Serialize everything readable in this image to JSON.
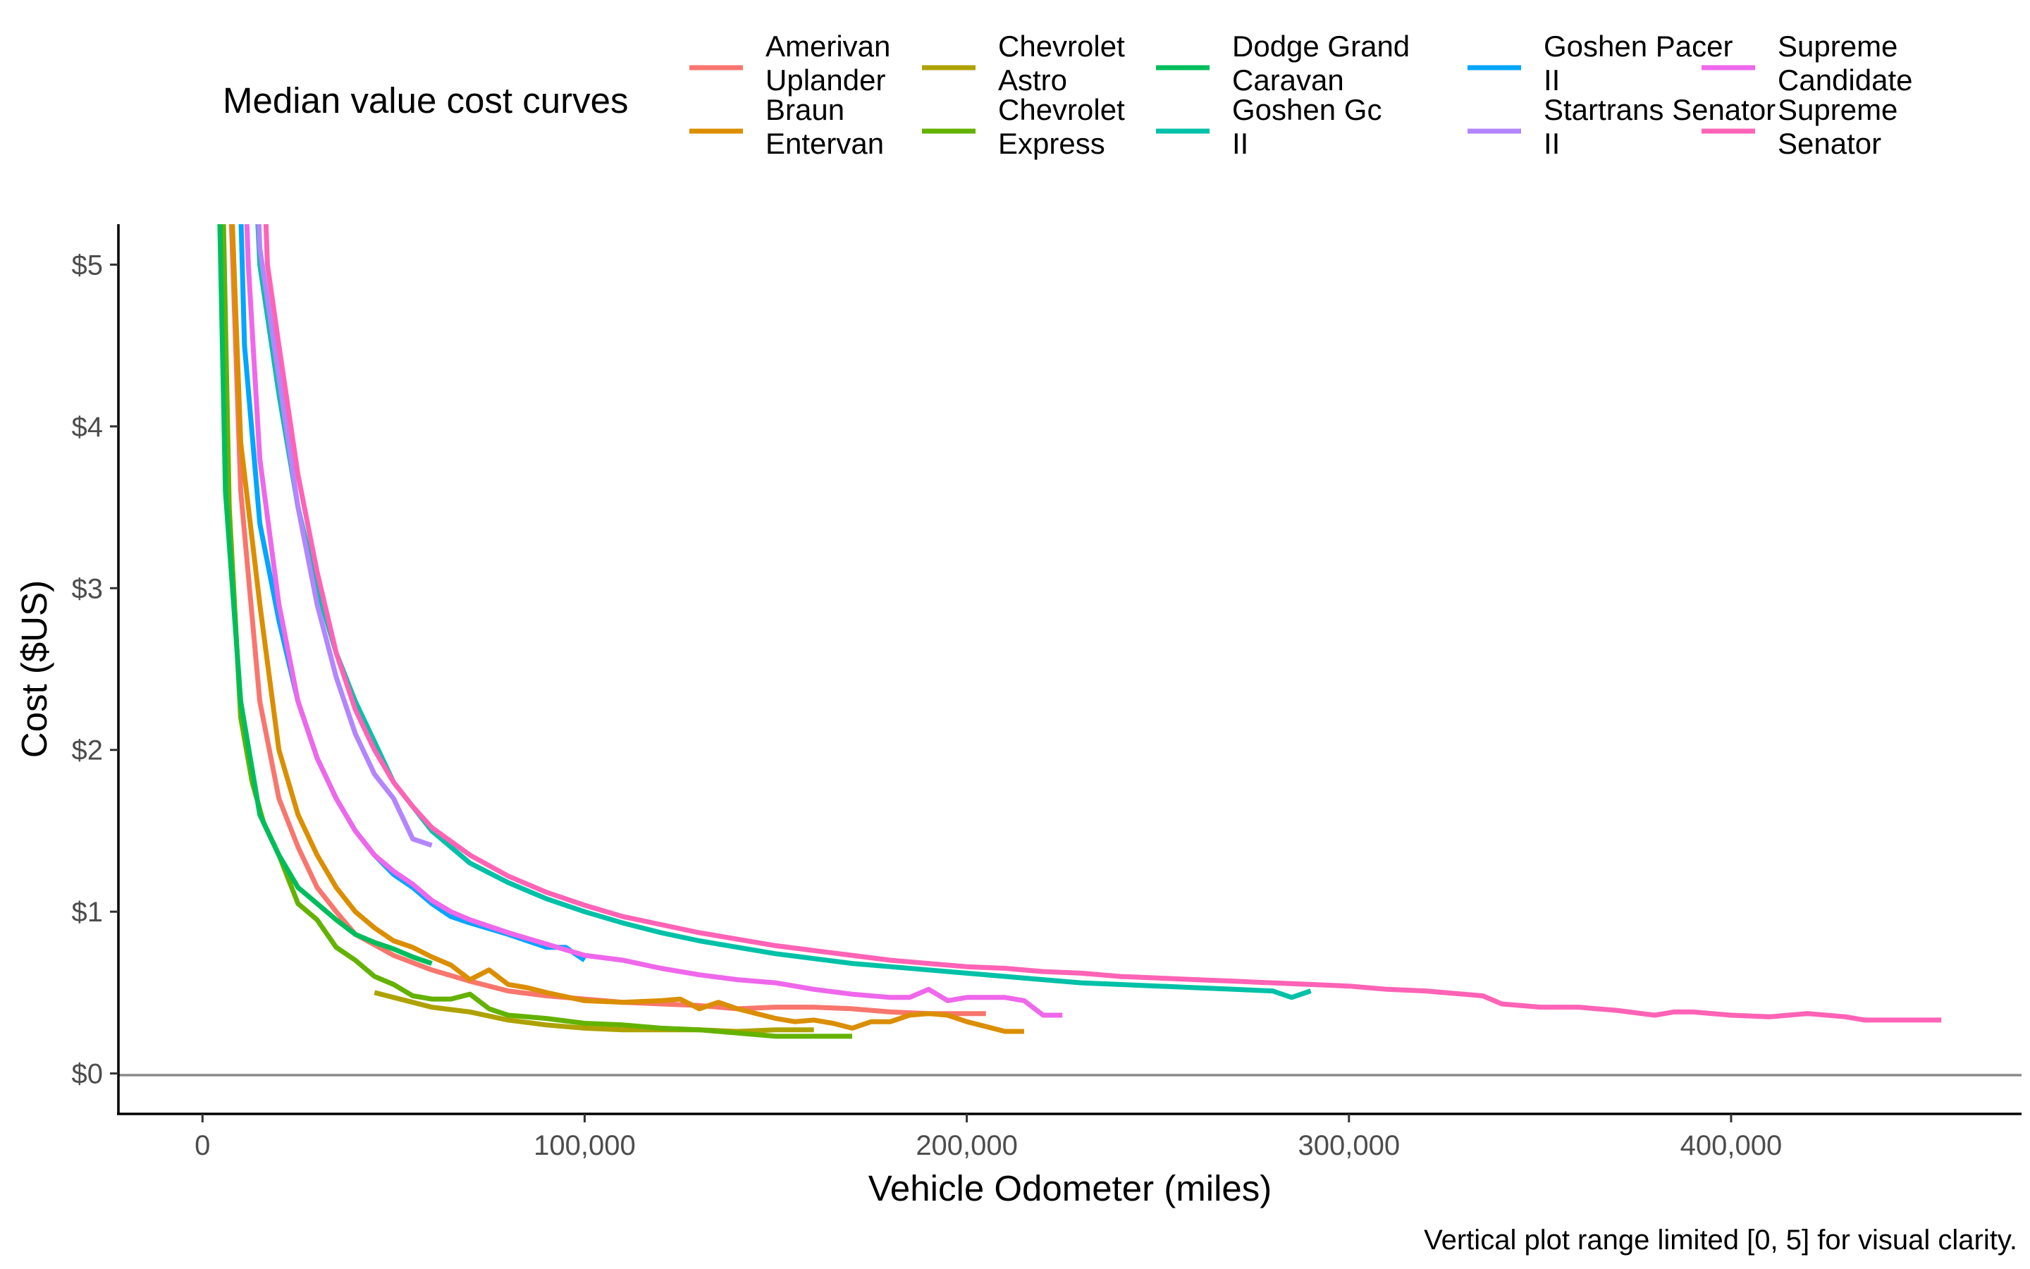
{
  "legend": {
    "title": "Median value cost curves"
  },
  "caption": "Vertical plot range limited [0, 5] for visual clarity.",
  "chart_data": {
    "type": "line",
    "xlabel": "Vehicle Odometer (miles)",
    "ylabel": "Cost ($US)",
    "xlim": [
      -22000,
      476000
    ],
    "ylim": [
      -0.25,
      5.25
    ],
    "x_ticks": [
      0,
      100000,
      200000,
      300000,
      400000
    ],
    "x_tick_labels": [
      "0",
      "100,000",
      "200,000",
      "300,000",
      "400,000"
    ],
    "y_ticks": [
      0,
      1,
      2,
      3,
      4,
      5
    ],
    "y_tick_labels": [
      "$0",
      "$1",
      "$2",
      "$3",
      "$4",
      "$5"
    ],
    "reference_line_y": 0,
    "grid": false,
    "legend_position": "top",
    "series": [
      {
        "name": "Amerivan Uplander",
        "color": "#F8766D",
        "points": [
          [
            5000,
            7.0
          ],
          [
            10000,
            3.6
          ],
          [
            15000,
            2.3
          ],
          [
            20000,
            1.7
          ],
          [
            25000,
            1.4
          ],
          [
            30000,
            1.15
          ],
          [
            35000,
            1.0
          ],
          [
            40000,
            0.86
          ],
          [
            50000,
            0.73
          ],
          [
            60000,
            0.64
          ],
          [
            70000,
            0.57
          ],
          [
            80000,
            0.51
          ],
          [
            90000,
            0.48
          ],
          [
            100000,
            0.46
          ],
          [
            110000,
            0.44
          ],
          [
            120000,
            0.43
          ],
          [
            130000,
            0.42
          ],
          [
            140000,
            0.4
          ],
          [
            150000,
            0.41
          ],
          [
            160000,
            0.41
          ],
          [
            170000,
            0.4
          ],
          [
            180000,
            0.38
          ],
          [
            190000,
            0.37
          ],
          [
            200000,
            0.37
          ],
          [
            205000,
            0.37
          ]
        ]
      },
      {
        "name": "Braun Entervan",
        "color": "#DB8E00",
        "points": [
          [
            5000,
            7.0
          ],
          [
            10000,
            3.9
          ],
          [
            15000,
            2.9
          ],
          [
            20000,
            2.0
          ],
          [
            25000,
            1.6
          ],
          [
            30000,
            1.35
          ],
          [
            35000,
            1.15
          ],
          [
            40000,
            1.0
          ],
          [
            45000,
            0.9
          ],
          [
            50000,
            0.82
          ],
          [
            55000,
            0.78
          ],
          [
            60000,
            0.72
          ],
          [
            65000,
            0.67
          ],
          [
            70000,
            0.58
          ],
          [
            75000,
            0.64
          ],
          [
            80000,
            0.55
          ],
          [
            85000,
            0.53
          ],
          [
            90000,
            0.5
          ],
          [
            100000,
            0.45
          ],
          [
            110000,
            0.44
          ],
          [
            120000,
            0.45
          ],
          [
            125000,
            0.46
          ],
          [
            130000,
            0.4
          ],
          [
            135000,
            0.44
          ],
          [
            140000,
            0.4
          ],
          [
            150000,
            0.34
          ],
          [
            155000,
            0.32
          ],
          [
            160000,
            0.33
          ],
          [
            165000,
            0.31
          ],
          [
            170000,
            0.28
          ],
          [
            175000,
            0.32
          ],
          [
            180000,
            0.32
          ],
          [
            185000,
            0.36
          ],
          [
            190000,
            0.37
          ],
          [
            195000,
            0.36
          ],
          [
            200000,
            0.32
          ],
          [
            210000,
            0.26
          ],
          [
            215000,
            0.26
          ]
        ]
      },
      {
        "name": "Chevrolet Astro",
        "color": "#AEA200",
        "points": [
          [
            45000,
            0.5
          ],
          [
            50000,
            0.47
          ],
          [
            55000,
            0.44
          ],
          [
            60000,
            0.41
          ],
          [
            70000,
            0.38
          ],
          [
            80000,
            0.33
          ],
          [
            90000,
            0.3
          ],
          [
            100000,
            0.28
          ],
          [
            110000,
            0.27
          ],
          [
            120000,
            0.27
          ],
          [
            130000,
            0.27
          ],
          [
            140000,
            0.26
          ],
          [
            150000,
            0.27
          ],
          [
            160000,
            0.27
          ]
        ]
      },
      {
        "name": "Chevrolet Express",
        "color": "#64B200",
        "points": [
          [
            4000,
            7.0
          ],
          [
            7000,
            3.5
          ],
          [
            10000,
            2.2
          ],
          [
            13000,
            1.8
          ],
          [
            16000,
            1.55
          ],
          [
            20000,
            1.35
          ],
          [
            25000,
            1.05
          ],
          [
            30000,
            0.95
          ],
          [
            35000,
            0.78
          ],
          [
            40000,
            0.7
          ],
          [
            45000,
            0.6
          ],
          [
            50000,
            0.55
          ],
          [
            55000,
            0.48
          ],
          [
            60000,
            0.46
          ],
          [
            65000,
            0.46
          ],
          [
            70000,
            0.49
          ],
          [
            75000,
            0.4
          ],
          [
            80000,
            0.36
          ],
          [
            90000,
            0.34
          ],
          [
            100000,
            0.31
          ],
          [
            110000,
            0.3
          ],
          [
            120000,
            0.28
          ],
          [
            130000,
            0.27
          ],
          [
            140000,
            0.25
          ],
          [
            150000,
            0.23
          ],
          [
            160000,
            0.23
          ],
          [
            170000,
            0.23
          ]
        ]
      },
      {
        "name": "Dodge Grand Caravan",
        "color": "#00BD5C",
        "points": [
          [
            3000,
            7.0
          ],
          [
            6000,
            3.6
          ],
          [
            10000,
            2.3
          ],
          [
            15000,
            1.6
          ],
          [
            20000,
            1.35
          ],
          [
            25000,
            1.15
          ],
          [
            30000,
            1.05
          ],
          [
            35000,
            0.95
          ],
          [
            40000,
            0.86
          ],
          [
            45000,
            0.81
          ],
          [
            50000,
            0.77
          ],
          [
            55000,
            0.72
          ],
          [
            60000,
            0.68
          ]
        ]
      },
      {
        "name": "Goshen Gc II",
        "color": "#00C1A7",
        "points": [
          [
            11000,
            7.0
          ],
          [
            15000,
            5.0
          ],
          [
            20000,
            4.2
          ],
          [
            25000,
            3.5
          ],
          [
            30000,
            3.0
          ],
          [
            35000,
            2.6
          ],
          [
            40000,
            2.3
          ],
          [
            45000,
            2.05
          ],
          [
            50000,
            1.8
          ],
          [
            55000,
            1.65
          ],
          [
            60000,
            1.5
          ],
          [
            70000,
            1.3
          ],
          [
            80000,
            1.18
          ],
          [
            90000,
            1.08
          ],
          [
            100000,
            1.0
          ],
          [
            110000,
            0.93
          ],
          [
            120000,
            0.87
          ],
          [
            130000,
            0.82
          ],
          [
            140000,
            0.78
          ],
          [
            150000,
            0.74
          ],
          [
            160000,
            0.71
          ],
          [
            170000,
            0.68
          ],
          [
            180000,
            0.66
          ],
          [
            190000,
            0.64
          ],
          [
            200000,
            0.62
          ],
          [
            210000,
            0.6
          ],
          [
            220000,
            0.58
          ],
          [
            230000,
            0.56
          ],
          [
            240000,
            0.55
          ],
          [
            250000,
            0.54
          ],
          [
            260000,
            0.53
          ],
          [
            270000,
            0.52
          ],
          [
            280000,
            0.51
          ],
          [
            285000,
            0.47
          ],
          [
            290000,
            0.51
          ]
        ]
      },
      {
        "name": "Goshen Pacer II",
        "color": "#00A6FF",
        "points": [
          [
            8000,
            7.0
          ],
          [
            11000,
            4.5
          ],
          [
            15000,
            3.4
          ],
          [
            20000,
            2.8
          ],
          [
            25000,
            2.3
          ],
          [
            30000,
            1.95
          ],
          [
            35000,
            1.7
          ],
          [
            40000,
            1.5
          ],
          [
            45000,
            1.35
          ],
          [
            50000,
            1.23
          ],
          [
            55000,
            1.15
          ],
          [
            60000,
            1.05
          ],
          [
            65000,
            0.97
          ],
          [
            70000,
            0.93
          ],
          [
            80000,
            0.86
          ],
          [
            90000,
            0.78
          ],
          [
            95000,
            0.78
          ],
          [
            100000,
            0.7
          ]
        ]
      },
      {
        "name": "Startrans Senator II",
        "color": "#B385FF",
        "points": [
          [
            12000,
            7.0
          ],
          [
            15000,
            5.1
          ],
          [
            20000,
            4.3
          ],
          [
            25000,
            3.5
          ],
          [
            30000,
            2.9
          ],
          [
            35000,
            2.45
          ],
          [
            40000,
            2.1
          ],
          [
            45000,
            1.85
          ],
          [
            50000,
            1.7
          ],
          [
            55000,
            1.45
          ],
          [
            60000,
            1.41
          ]
        ]
      },
      {
        "name": "Supreme Candidate",
        "color": "#EF67EB",
        "points": [
          [
            9000,
            7.0
          ],
          [
            12000,
            5.0
          ],
          [
            15000,
            3.8
          ],
          [
            20000,
            2.9
          ],
          [
            25000,
            2.3
          ],
          [
            30000,
            1.95
          ],
          [
            35000,
            1.7
          ],
          [
            40000,
            1.5
          ],
          [
            45000,
            1.35
          ],
          [
            50000,
            1.25
          ],
          [
            55000,
            1.17
          ],
          [
            60000,
            1.07
          ],
          [
            65000,
            1.0
          ],
          [
            70000,
            0.95
          ],
          [
            80000,
            0.87
          ],
          [
            90000,
            0.8
          ],
          [
            100000,
            0.73
          ],
          [
            110000,
            0.7
          ],
          [
            120000,
            0.65
          ],
          [
            130000,
            0.61
          ],
          [
            140000,
            0.58
          ],
          [
            150000,
            0.56
          ],
          [
            160000,
            0.52
          ],
          [
            170000,
            0.49
          ],
          [
            180000,
            0.47
          ],
          [
            185000,
            0.47
          ],
          [
            190000,
            0.52
          ],
          [
            195000,
            0.45
          ],
          [
            200000,
            0.47
          ],
          [
            210000,
            0.47
          ],
          [
            215000,
            0.45
          ],
          [
            220000,
            0.36
          ],
          [
            225000,
            0.36
          ]
        ]
      },
      {
        "name": "Supreme Senator",
        "color": "#FF63B6",
        "points": [
          [
            14000,
            7.0
          ],
          [
            17000,
            5.0
          ],
          [
            20000,
            4.5
          ],
          [
            25000,
            3.7
          ],
          [
            30000,
            3.1
          ],
          [
            35000,
            2.6
          ],
          [
            40000,
            2.25
          ],
          [
            45000,
            2.0
          ],
          [
            50000,
            1.8
          ],
          [
            55000,
            1.65
          ],
          [
            60000,
            1.52
          ],
          [
            70000,
            1.35
          ],
          [
            80000,
            1.22
          ],
          [
            90000,
            1.12
          ],
          [
            100000,
            1.04
          ],
          [
            110000,
            0.97
          ],
          [
            120000,
            0.92
          ],
          [
            130000,
            0.87
          ],
          [
            140000,
            0.83
          ],
          [
            150000,
            0.79
          ],
          [
            160000,
            0.76
          ],
          [
            170000,
            0.73
          ],
          [
            180000,
            0.7
          ],
          [
            190000,
            0.68
          ],
          [
            200000,
            0.66
          ],
          [
            210000,
            0.65
          ],
          [
            220000,
            0.63
          ],
          [
            230000,
            0.62
          ],
          [
            240000,
            0.6
          ],
          [
            250000,
            0.59
          ],
          [
            260000,
            0.58
          ],
          [
            270000,
            0.57
          ],
          [
            280000,
            0.56
          ],
          [
            290000,
            0.55
          ],
          [
            300000,
            0.54
          ],
          [
            310000,
            0.52
          ],
          [
            320000,
            0.51
          ],
          [
            330000,
            0.49
          ],
          [
            335000,
            0.48
          ],
          [
            340000,
            0.43
          ],
          [
            350000,
            0.41
          ],
          [
            360000,
            0.41
          ],
          [
            370000,
            0.39
          ],
          [
            380000,
            0.36
          ],
          [
            385000,
            0.38
          ],
          [
            390000,
            0.38
          ],
          [
            400000,
            0.36
          ],
          [
            410000,
            0.35
          ],
          [
            420000,
            0.37
          ],
          [
            430000,
            0.35
          ],
          [
            435000,
            0.33
          ],
          [
            440000,
            0.33
          ],
          [
            450000,
            0.33
          ],
          [
            455000,
            0.33
          ]
        ]
      }
    ]
  }
}
